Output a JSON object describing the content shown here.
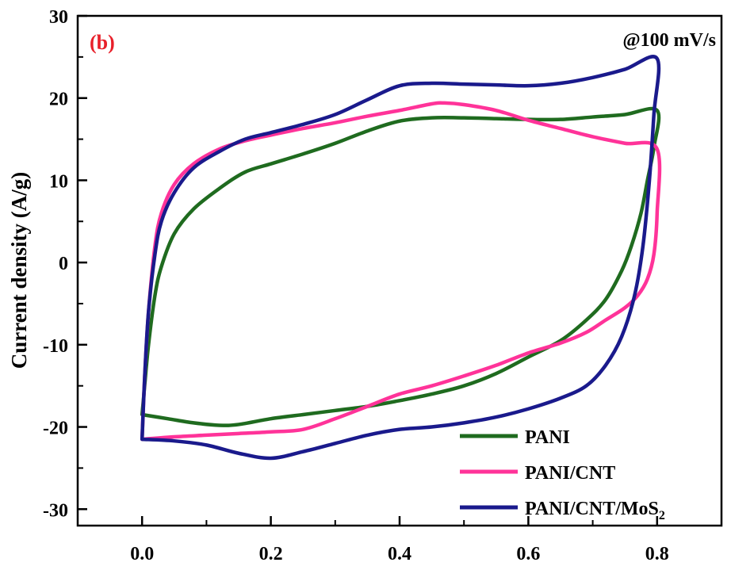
{
  "chart_data": {
    "type": "line",
    "panel_label": "(b)",
    "annotation": "@100 mV/s",
    "xlabel": "",
    "ylabel": "Current density (A/g)",
    "xlim": [
      -0.1,
      0.9
    ],
    "ylim": [
      -32,
      30
    ],
    "x_ticks": [
      0.0,
      0.2,
      0.4,
      0.6,
      0.8
    ],
    "x_tick_labels": [
      "0.0",
      "0.2",
      "0.4",
      "0.6",
      "0.8"
    ],
    "y_ticks": [
      -30,
      -20,
      -10,
      0,
      10,
      20,
      30
    ],
    "y_tick_labels": [
      "-30",
      "-20",
      "-10",
      "0",
      "10",
      "20",
      "30"
    ],
    "legend_position": "bottom-right",
    "colors": {
      "panel_label": "#e8202a",
      "axis": "#000000"
    },
    "series": [
      {
        "name": "PANI",
        "color": "#1f6b1f",
        "points": [
          [
            0.0,
            -18.5
          ],
          [
            0.004,
            -15
          ],
          [
            0.01,
            -10
          ],
          [
            0.02,
            -4
          ],
          [
            0.03,
            -0.5
          ],
          [
            0.05,
            3.5
          ],
          [
            0.08,
            6.5
          ],
          [
            0.12,
            9
          ],
          [
            0.16,
            11
          ],
          [
            0.2,
            12
          ],
          [
            0.25,
            13.2
          ],
          [
            0.3,
            14.5
          ],
          [
            0.35,
            16
          ],
          [
            0.4,
            17.2
          ],
          [
            0.45,
            17.6
          ],
          [
            0.5,
            17.6
          ],
          [
            0.55,
            17.5
          ],
          [
            0.6,
            17.4
          ],
          [
            0.65,
            17.4
          ],
          [
            0.7,
            17.7
          ],
          [
            0.75,
            18.0
          ],
          [
            0.8,
            18.5
          ],
          [
            0.795,
            14
          ],
          [
            0.785,
            10
          ],
          [
            0.775,
            6
          ],
          [
            0.76,
            2
          ],
          [
            0.745,
            -1
          ],
          [
            0.72,
            -4.5
          ],
          [
            0.69,
            -7
          ],
          [
            0.65,
            -9.5
          ],
          [
            0.6,
            -11.5
          ],
          [
            0.55,
            -13.5
          ],
          [
            0.5,
            -15
          ],
          [
            0.45,
            -16
          ],
          [
            0.4,
            -16.8
          ],
          [
            0.35,
            -17.5
          ],
          [
            0.3,
            -18.0
          ],
          [
            0.25,
            -18.5
          ],
          [
            0.2,
            -19.0
          ],
          [
            0.15,
            -19.7
          ],
          [
            0.12,
            -19.8
          ],
          [
            0.08,
            -19.5
          ],
          [
            0.04,
            -19.0
          ],
          [
            0.0,
            -18.5
          ]
        ]
      },
      {
        "name": "PANI/CNT",
        "color": "#ff3399",
        "points": [
          [
            0.0,
            -21.5
          ],
          [
            0.004,
            -14
          ],
          [
            0.01,
            -6
          ],
          [
            0.02,
            2
          ],
          [
            0.03,
            6
          ],
          [
            0.05,
            9.5
          ],
          [
            0.08,
            12
          ],
          [
            0.12,
            13.8
          ],
          [
            0.16,
            14.8
          ],
          [
            0.2,
            15.5
          ],
          [
            0.25,
            16.3
          ],
          [
            0.3,
            17.0
          ],
          [
            0.35,
            17.8
          ],
          [
            0.4,
            18.5
          ],
          [
            0.45,
            19.3
          ],
          [
            0.47,
            19.4
          ],
          [
            0.5,
            19.2
          ],
          [
            0.55,
            18.5
          ],
          [
            0.6,
            17.3
          ],
          [
            0.65,
            16.3
          ],
          [
            0.7,
            15.3
          ],
          [
            0.75,
            14.5
          ],
          [
            0.8,
            13.8
          ],
          [
            0.8,
            6
          ],
          [
            0.795,
            1
          ],
          [
            0.785,
            -2
          ],
          [
            0.77,
            -4
          ],
          [
            0.75,
            -5.5
          ],
          [
            0.72,
            -7
          ],
          [
            0.69,
            -8.5
          ],
          [
            0.65,
            -9.8
          ],
          [
            0.6,
            -11
          ],
          [
            0.55,
            -12.5
          ],
          [
            0.5,
            -13.8
          ],
          [
            0.45,
            -15
          ],
          [
            0.4,
            -16
          ],
          [
            0.35,
            -17.5
          ],
          [
            0.3,
            -19
          ],
          [
            0.25,
            -20.3
          ],
          [
            0.2,
            -20.6
          ],
          [
            0.15,
            -20.8
          ],
          [
            0.1,
            -21.0
          ],
          [
            0.05,
            -21.2
          ],
          [
            0.0,
            -21.5
          ]
        ]
      },
      {
        "name": "PANI/CNT/MoS2",
        "color": "#1a1a8c",
        "points": [
          [
            0.0,
            -21.5
          ],
          [
            0.004,
            -14
          ],
          [
            0.01,
            -6
          ],
          [
            0.02,
            1
          ],
          [
            0.03,
            5
          ],
          [
            0.05,
            8.5
          ],
          [
            0.08,
            11.5
          ],
          [
            0.12,
            13.5
          ],
          [
            0.16,
            15
          ],
          [
            0.2,
            15.8
          ],
          [
            0.25,
            16.8
          ],
          [
            0.3,
            18
          ],
          [
            0.35,
            19.8
          ],
          [
            0.4,
            21.5
          ],
          [
            0.45,
            21.8
          ],
          [
            0.5,
            21.7
          ],
          [
            0.55,
            21.6
          ],
          [
            0.6,
            21.5
          ],
          [
            0.65,
            21.8
          ],
          [
            0.7,
            22.5
          ],
          [
            0.75,
            23.5
          ],
          [
            0.8,
            24.8
          ],
          [
            0.795,
            18
          ],
          [
            0.788,
            10
          ],
          [
            0.778,
            2
          ],
          [
            0.765,
            -4
          ],
          [
            0.745,
            -9
          ],
          [
            0.72,
            -12.5
          ],
          [
            0.69,
            -15
          ],
          [
            0.65,
            -16.5
          ],
          [
            0.6,
            -17.8
          ],
          [
            0.55,
            -18.8
          ],
          [
            0.5,
            -19.5
          ],
          [
            0.45,
            -20
          ],
          [
            0.4,
            -20.3
          ],
          [
            0.35,
            -21
          ],
          [
            0.3,
            -22
          ],
          [
            0.25,
            -23
          ],
          [
            0.2,
            -23.8
          ],
          [
            0.15,
            -23.2
          ],
          [
            0.1,
            -22.2
          ],
          [
            0.05,
            -21.7
          ],
          [
            0.0,
            -21.5
          ]
        ]
      }
    ]
  }
}
